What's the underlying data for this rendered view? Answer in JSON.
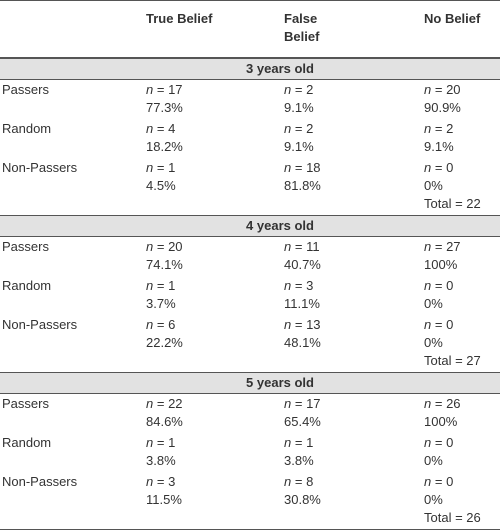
{
  "headers": {
    "col1": "",
    "col2": "True Belief",
    "col3_line1": "False",
    "col3_line2": "Belief",
    "col4": "No Belief"
  },
  "groups": [
    {
      "title": "3 years old",
      "rows": [
        {
          "label": "Passers",
          "true_n": "= 17",
          "true_p": "77.3%",
          "false_n": "= 2",
          "false_p": "9.1%",
          "no_n": "= 20",
          "no_p": "90.9%"
        },
        {
          "label": "Random",
          "true_n": "= 4",
          "true_p": "18.2%",
          "false_n": "= 2",
          "false_p": "9.1%",
          "no_n": "= 2",
          "no_p": "9.1%"
        },
        {
          "label": "Non-Passers",
          "true_n": "= 1",
          "true_p": "4.5%",
          "false_n": "= 18",
          "false_p": "81.8%",
          "no_n": "= 0",
          "no_p": "0%",
          "total": "Total = 22"
        }
      ]
    },
    {
      "title": "4 years old",
      "rows": [
        {
          "label": "Passers",
          "true_n": "= 20",
          "true_p": "74.1%",
          "false_n": "= 11",
          "false_p": "40.7%",
          "no_n": "= 27",
          "no_p": "100%"
        },
        {
          "label": "Random",
          "true_n": "= 1",
          "true_p": "3.7%",
          "false_n": "= 3",
          "false_p": "11.1%",
          "no_n": "= 0",
          "no_p": "0%"
        },
        {
          "label": "Non-Passers",
          "true_n": "= 6",
          "true_p": "22.2%",
          "false_n": "= 13",
          "false_p": "48.1%",
          "no_n": "= 0",
          "no_p": "0%",
          "total": "Total = 27"
        }
      ]
    },
    {
      "title": "5 years old",
      "rows": [
        {
          "label": "Passers",
          "true_n": "= 22",
          "true_p": "84.6%",
          "false_n": "= 17",
          "false_p": "65.4%",
          "no_n": "= 26",
          "no_p": "100%"
        },
        {
          "label": "Random",
          "true_n": "= 1",
          "true_p": "3.8%",
          "false_n": "= 1",
          "false_p": "3.8%",
          "no_n": "= 0",
          "no_p": "0%"
        },
        {
          "label": "Non-Passers",
          "true_n": "= 3",
          "true_p": "11.5%",
          "false_n": "= 8",
          "false_p": "30.8%",
          "no_n": "= 0",
          "no_p": "0%",
          "total": "Total = 26"
        }
      ]
    }
  ],
  "n_symbol": "n"
}
